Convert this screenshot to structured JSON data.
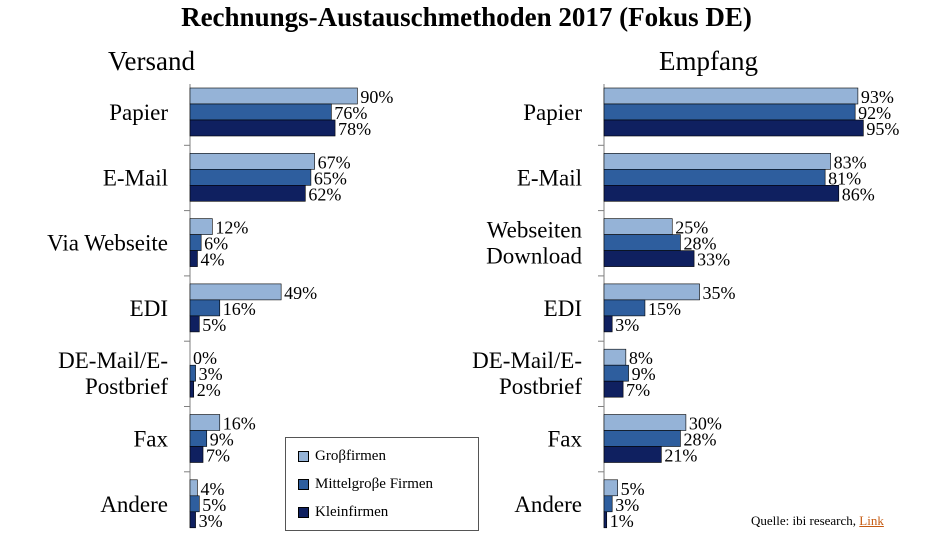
{
  "title": "Rechnungs-Austauschmethoden 2017 (Fokus DE)",
  "legend": {
    "items": [
      "Groβfirmen",
      "Mittelgroβe  Firmen",
      "Kleinfirmen"
    ]
  },
  "source": {
    "text": "Quelle: ibi research,",
    "link": "Link"
  },
  "colors": {
    "Groβfirmen": "#95b3d7",
    "Mittelgroβe Firmen": "#2e5e9e",
    "Kleinfirmen": "#0f2060"
  },
  "chart_data": [
    {
      "type": "bar",
      "orientation": "horizontal",
      "title": "Versand",
      "categories": [
        [
          "Papier"
        ],
        [
          "E-Mail"
        ],
        [
          "Via Webseite"
        ],
        [
          "EDI"
        ],
        [
          "DE-Mail/E-",
          "Postbrief"
        ],
        [
          "Fax"
        ],
        [
          "Andere"
        ]
      ],
      "series": [
        {
          "name": "Groβfirmen",
          "values": [
            90,
            67,
            12,
            49,
            0,
            16,
            4
          ]
        },
        {
          "name": "Mittelgroβe Firmen",
          "values": [
            76,
            65,
            6,
            16,
            3,
            9,
            5
          ]
        },
        {
          "name": "Kleinfirmen",
          "values": [
            78,
            62,
            4,
            5,
            2,
            7,
            3
          ]
        }
      ],
      "unit": "%",
      "xlim": [
        0,
        100
      ],
      "grid": false
    },
    {
      "type": "bar",
      "orientation": "horizontal",
      "title": "Empfang",
      "categories": [
        [
          "Papier"
        ],
        [
          "E-Mail"
        ],
        [
          "Webseiten",
          "Download"
        ],
        [
          "EDI"
        ],
        [
          "DE-Mail/E-",
          "Postbrief"
        ],
        [
          "Fax"
        ],
        [
          "Andere"
        ]
      ],
      "series": [
        {
          "name": "Groβfirmen",
          "values": [
            93,
            83,
            25,
            35,
            8,
            30,
            5
          ]
        },
        {
          "name": "Mittelgroβe Firmen",
          "values": [
            92,
            81,
            28,
            15,
            9,
            28,
            3
          ]
        },
        {
          "name": "Kleinfirmen",
          "values": [
            95,
            86,
            33,
            3,
            7,
            21,
            1
          ]
        }
      ],
      "unit": "%",
      "xlim": [
        0,
        100
      ],
      "grid": false
    }
  ]
}
